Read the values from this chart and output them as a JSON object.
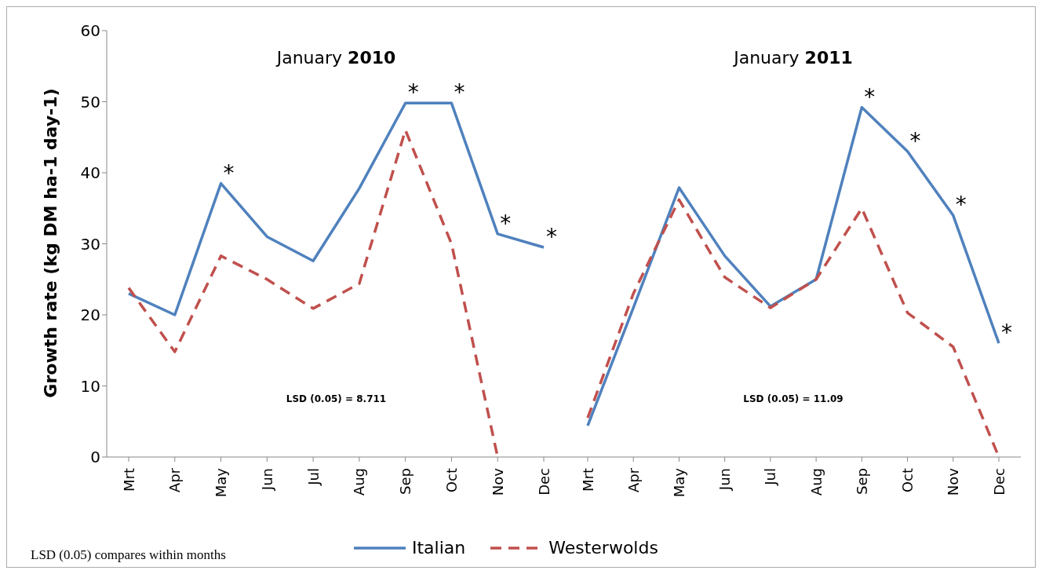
{
  "chart_data": [
    {
      "type": "line",
      "title": "January 2010",
      "ylabel": "Growth rate (kg DM ha-1 day-1)",
      "categories": [
        "Mrt",
        "Apr",
        "May",
        "Jun",
        "Jul",
        "Aug",
        "Sep",
        "Oct",
        "Nov",
        "Dec"
      ],
      "series": [
        {
          "name": "Italian",
          "color": "#4f81bd",
          "line_style": "solid",
          "values": [
            23,
            20,
            38.5,
            31,
            27.6,
            37.8,
            49.8,
            49.8,
            31.4,
            29.5
          ]
        },
        {
          "name": "Westerwolds",
          "color": "#c0504d",
          "line_style": "dashed",
          "values": [
            23.8,
            14.8,
            28.3,
            25,
            20.9,
            24.4,
            46,
            30,
            0,
            null
          ]
        }
      ],
      "ylim": [
        0,
        60
      ],
      "yticks": [
        0,
        10,
        20,
        30,
        40,
        50,
        60
      ],
      "legend": "bottom",
      "annotations": [
        "LSD (0.05) = 8.711",
        "LSD (0.05) compares within months",
        {
          "text": "*",
          "x": "May",
          "y": 38.5
        },
        {
          "text": "*",
          "x": "Sep",
          "y": 49.8
        },
        {
          "text": "*",
          "x": "Oct",
          "y": 49.8
        },
        {
          "text": "*",
          "x": "Nov",
          "y": 31.4
        },
        {
          "text": "*",
          "x": "Dec",
          "y": 29.5
        }
      ]
    },
    {
      "type": "line",
      "title": "January 2011",
      "categories": [
        "Mrt",
        "Apr",
        "May",
        "Jun",
        "Jul",
        "Aug",
        "Sep",
        "Oct",
        "Nov",
        "Dec"
      ],
      "series": [
        {
          "color": "#4f81bd",
          "line_style": "solid",
          "values": [
            4.4,
            21,
            37.9,
            28.3,
            21.2,
            25,
            49.2,
            43,
            34,
            16
          ]
        },
        {
          "color": "#c0504d",
          "line_style": "dashed",
          "values": [
            5.5,
            23,
            36.2,
            25.3,
            21,
            25,
            35,
            20.3,
            15.5,
            0
          ]
        }
      ],
      "ylim": [
        0,
        60
      ],
      "yticks": [
        0,
        10,
        20,
        30,
        40,
        50,
        60
      ],
      "tick_labels": "x",
      "annotations": [
        "LSD (0.05) = 11.09",
        {
          "text": "*",
          "x": "Sep",
          "y": 49.2
        },
        {
          "text": "*",
          "x": "Oct",
          "y": 43
        },
        {
          "text": "*",
          "x": "Nov",
          "y": 34
        },
        {
          "text": "*",
          "x": "Dec",
          "y": 16
        }
      ]
    }
  ]
}
